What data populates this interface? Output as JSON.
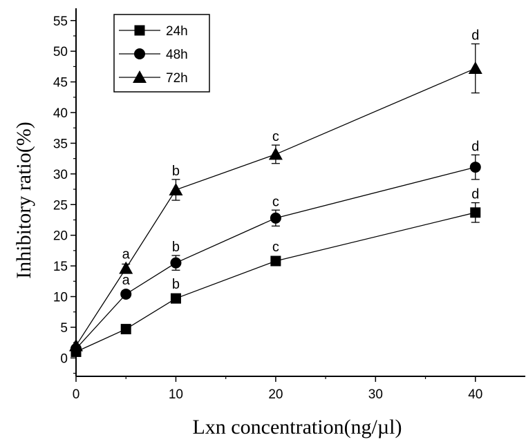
{
  "chart_data": {
    "type": "line",
    "xlabel": "Lxn concentration(ng/µl)",
    "ylabel": "Inhibitory ratio(%)",
    "xlim": [
      0,
      45
    ],
    "ylim": [
      -3,
      57
    ],
    "x_ticks": [
      0,
      10,
      20,
      30,
      40
    ],
    "y_ticks": [
      0,
      5,
      10,
      15,
      20,
      25,
      30,
      35,
      40,
      45,
      50,
      55
    ],
    "x": [
      0,
      5,
      10,
      20,
      40
    ],
    "legend_position": "top-left",
    "grid": false,
    "series": [
      {
        "name": "24h",
        "marker": "square",
        "values": [
          1.0,
          4.7,
          9.7,
          15.8,
          23.7
        ],
        "errors": [
          0.3,
          0.3,
          0.4,
          0.6,
          1.6
        ],
        "labels": [
          "",
          "",
          "b",
          "c",
          "d"
        ]
      },
      {
        "name": "48h",
        "marker": "circle",
        "values": [
          1.5,
          10.4,
          15.5,
          22.8,
          31.1
        ],
        "errors": [
          0.3,
          0.5,
          1.2,
          1.3,
          2.0
        ],
        "labels": [
          "",
          "a",
          "b",
          "c",
          "d"
        ]
      },
      {
        "name": "72h",
        "marker": "triangle",
        "values": [
          2.0,
          14.6,
          27.4,
          33.2,
          47.2
        ],
        "errors": [
          0.3,
          0.7,
          1.7,
          1.5,
          4.0
        ],
        "labels": [
          "",
          "a",
          "b",
          "c",
          "d"
        ]
      }
    ]
  }
}
